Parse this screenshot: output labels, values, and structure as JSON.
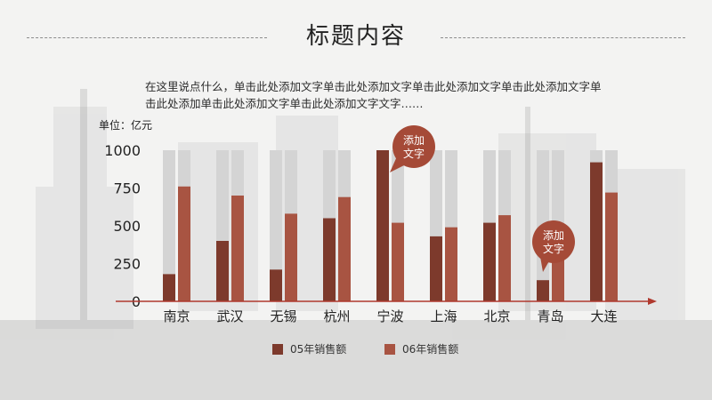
{
  "page": {
    "title": "标题内容",
    "description": "在这里说点什么，单击此处添加文字单击此处添加文字单击此处添加文字单击此处添加文字单击此处添加单击此处添加文字单击此处添加文字文字……",
    "unit_label": "单位：亿元"
  },
  "callouts": [
    {
      "text": "添加文字",
      "target_category": "宁波"
    },
    {
      "text": "添加文字",
      "target_category": "青岛"
    }
  ],
  "colors": {
    "series_05": "#7d3a2c",
    "series_06": "#a85442",
    "track": "#d4d4d4",
    "axis": "#b0392e",
    "bubble": "#a54a37"
  },
  "chart_data": {
    "type": "bar",
    "title": "",
    "xlabel": "",
    "ylabel": "单位：亿元",
    "ylim": [
      0,
      1000
    ],
    "y_ticks": [
      0,
      250,
      500,
      750,
      1000
    ],
    "categories": [
      "南京",
      "武汉",
      "无锡",
      "杭州",
      "宁波",
      "上海",
      "北京",
      "青岛",
      "大连"
    ],
    "series": [
      {
        "name": "05年销售额",
        "values": [
          180,
          400,
          210,
          550,
          1000,
          430,
          520,
          140,
          920
        ]
      },
      {
        "name": "06年销售额",
        "values": [
          760,
          700,
          580,
          690,
          520,
          490,
          570,
          350,
          720
        ]
      }
    ],
    "legend_position": "bottom",
    "grid": false
  }
}
